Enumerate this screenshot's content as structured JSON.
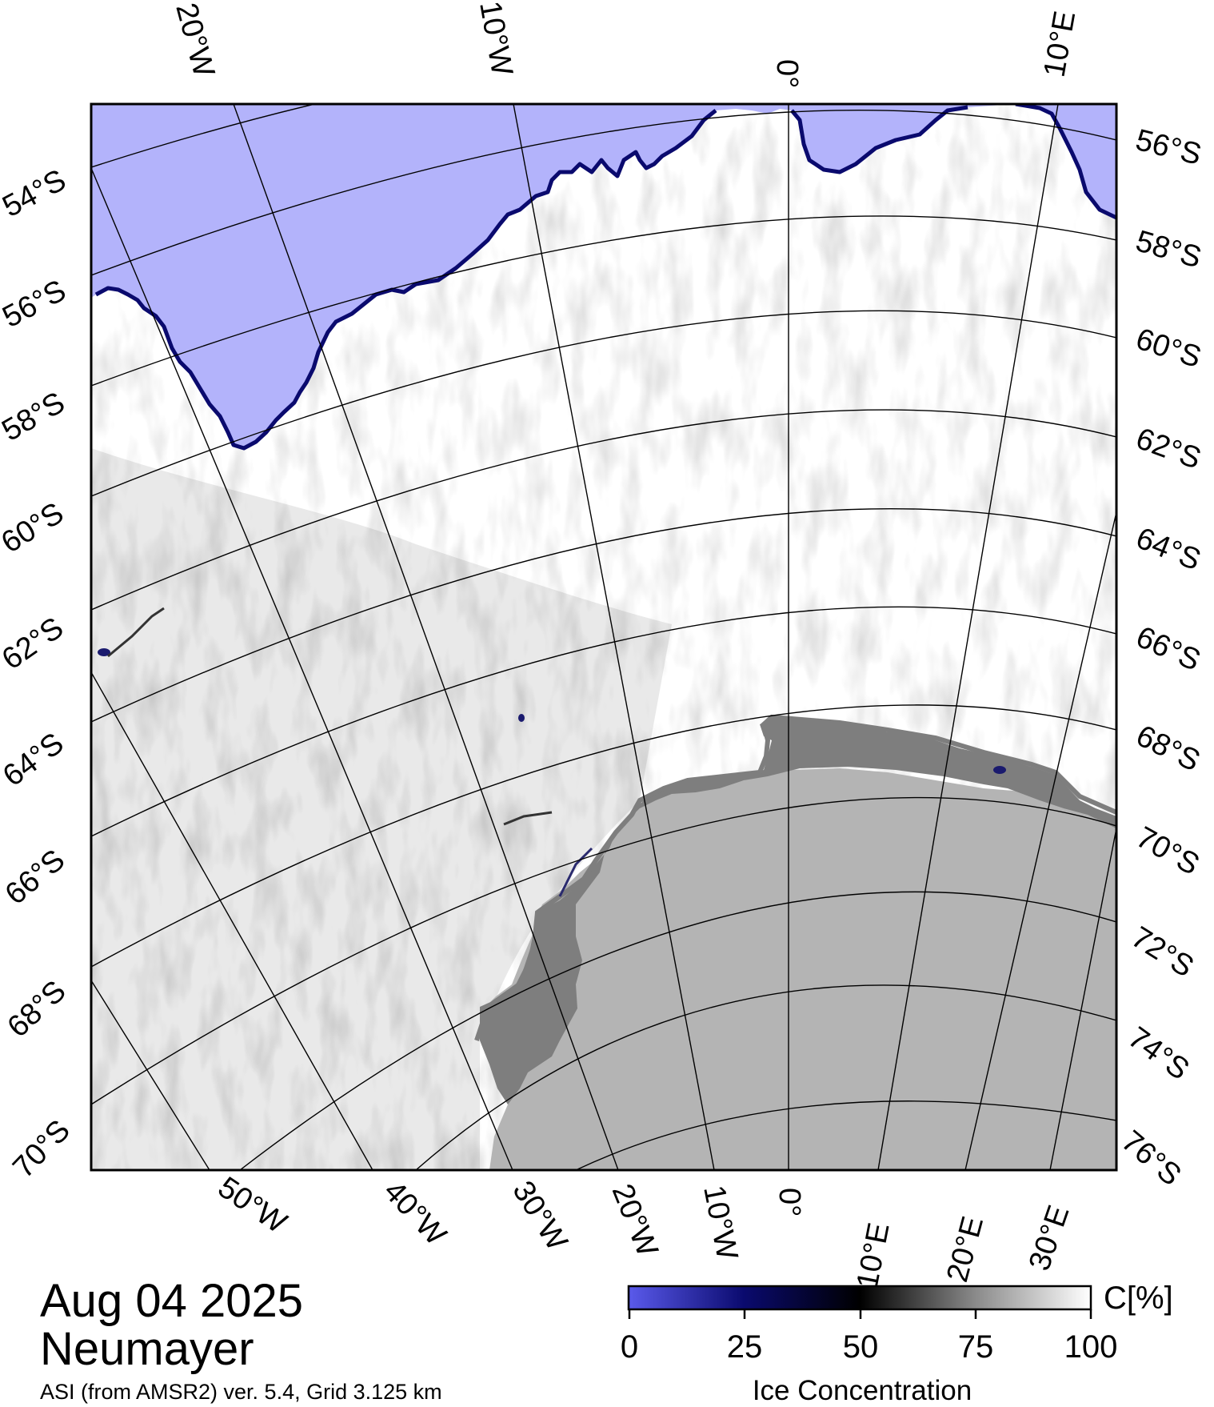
{
  "title": {
    "date": "Aug 04 2025",
    "station": "Neumayer",
    "product": "ASI (from AMSR2) ver. 5.4,  Grid 3.125 km"
  },
  "colors": {
    "open_water": "#b3b3fb",
    "land": "#b4b4b4",
    "ice_shelf": "#7e7e7e",
    "ice_full": "#ffffff",
    "graticule": "#000000"
  },
  "graticule": {
    "top_lon_labels": [
      "20°W",
      "10°W",
      "0°",
      "10°E"
    ],
    "bottom_lon_labels": [
      "50°W",
      "40°W",
      "30°W",
      "20°W",
      "10°W",
      "0°",
      "10°E",
      "20°E",
      "30°E"
    ],
    "left_lat_labels": [
      "54°S",
      "56°S",
      "58°S",
      "60°S",
      "62°S",
      "64°S",
      "66°S",
      "68°S",
      "70°S"
    ],
    "right_lat_labels": [
      "56°S",
      "58°S",
      "60°S",
      "62°S",
      "64°S",
      "66°S",
      "68°S",
      "70°S",
      "72°S",
      "74°S",
      "76°S"
    ]
  },
  "colorbar": {
    "title": "Ice Concentration",
    "unit": "C[%]",
    "ticks": [
      "0",
      "25",
      "50",
      "75",
      "100"
    ],
    "stops": [
      "#5a5aeb",
      "#0a0a6e",
      "#000000",
      "#8a8a8a",
      "#ffffff"
    ]
  }
}
